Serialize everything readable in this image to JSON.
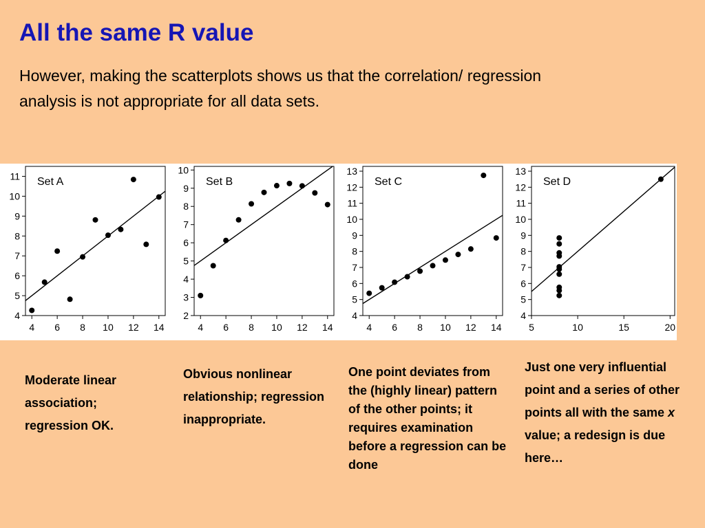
{
  "slide": {
    "title": "All the same R value",
    "subtitle": "However, making the scatterplots shows us that the correlation/ regression analysis is not appropriate for all data sets."
  },
  "captions": {
    "a": "Moderate linear association; regression OK.",
    "b": "Obvious nonlinear relationship; regression inappropriate.",
    "c": "One point deviates from the (highly linear) pattern of the other points; it requires examination before a regression can be done",
    "d_before": "Just one very influential point and a series of other points all with the same ",
    "d_italic": "x",
    "d_after": " value; a redesign is due here…"
  },
  "colors": {
    "title": "#1616b4",
    "background": "#fcc896",
    "plot_background": "#ffffff",
    "points": "#000000"
  },
  "chart_data": [
    {
      "type": "scatter",
      "title": "Set A",
      "xlim": [
        3.5,
        14.5
      ],
      "ylim": [
        4,
        11.5
      ],
      "xticks": [
        4,
        6,
        8,
        10,
        12,
        14
      ],
      "yticks": [
        4,
        5,
        6,
        7,
        8,
        9,
        10,
        11
      ],
      "x": [
        4,
        5,
        6,
        7,
        8,
        9,
        10,
        11,
        12,
        13,
        14
      ],
      "y": [
        4.26,
        5.68,
        7.24,
        4.82,
        6.95,
        8.81,
        8.04,
        8.33,
        10.84,
        7.58,
        9.96
      ],
      "regression_line": {
        "intercept": 3.0,
        "slope": 0.5
      }
    },
    {
      "type": "scatter",
      "title": "Set B",
      "xlim": [
        3.5,
        14.5
      ],
      "ylim": [
        2,
        10.2
      ],
      "xticks": [
        4,
        6,
        8,
        10,
        12,
        14
      ],
      "yticks": [
        2,
        3,
        4,
        5,
        6,
        7,
        8,
        9,
        10
      ],
      "x": [
        4,
        5,
        6,
        7,
        8,
        9,
        10,
        11,
        12,
        13,
        14
      ],
      "y": [
        3.1,
        4.74,
        6.13,
        7.26,
        8.14,
        8.77,
        9.14,
        9.26,
        9.13,
        8.74,
        8.1
      ],
      "regression_line": {
        "intercept": 3.0,
        "slope": 0.5
      }
    },
    {
      "type": "scatter",
      "title": "Set C",
      "xlim": [
        3.5,
        14.5
      ],
      "ylim": [
        4,
        13.3
      ],
      "xticks": [
        4,
        6,
        8,
        10,
        12,
        14
      ],
      "yticks": [
        4,
        5,
        6,
        7,
        8,
        9,
        10,
        11,
        12,
        13
      ],
      "x": [
        4,
        5,
        6,
        7,
        8,
        9,
        10,
        11,
        12,
        13,
        14
      ],
      "y": [
        5.39,
        5.73,
        6.08,
        6.42,
        6.77,
        7.11,
        7.46,
        7.81,
        8.15,
        12.74,
        8.84
      ],
      "regression_line": {
        "intercept": 3.0,
        "slope": 0.5
      }
    },
    {
      "type": "scatter",
      "title": "Set D",
      "xlim": [
        5,
        20.5
      ],
      "ylim": [
        4,
        13.3
      ],
      "xticks": [
        5,
        10,
        15,
        20
      ],
      "yticks": [
        4,
        5,
        6,
        7,
        8,
        9,
        10,
        11,
        12,
        13
      ],
      "x": [
        8,
        8,
        8,
        8,
        8,
        8,
        8,
        19,
        8,
        8,
        8
      ],
      "y": [
        6.58,
        5.76,
        7.71,
        8.84,
        8.47,
        7.04,
        5.25,
        12.5,
        5.56,
        7.91,
        6.89
      ],
      "regression_line": {
        "intercept": 3.0,
        "slope": 0.5
      }
    }
  ]
}
